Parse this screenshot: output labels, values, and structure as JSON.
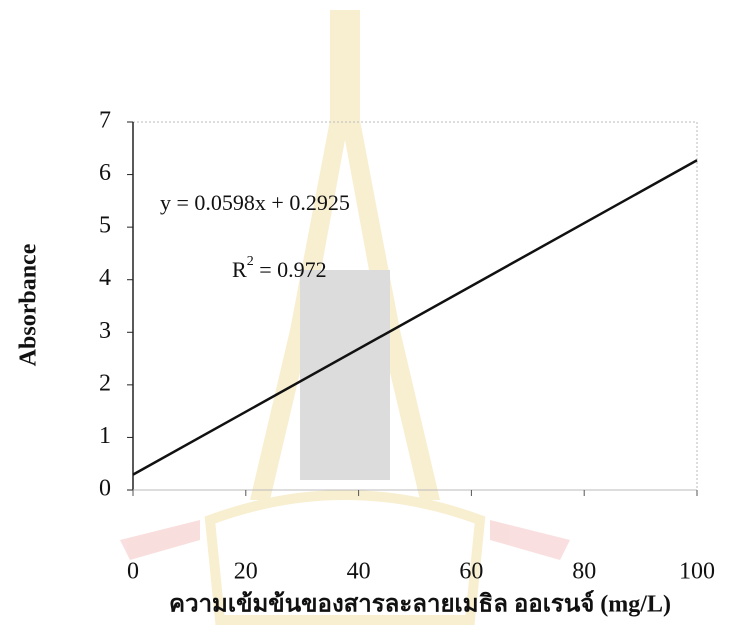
{
  "chart_data": {
    "type": "line",
    "x_label": "ความเข้มข้นของสารละลายเมธิล ออเรนจ์ (mg/L)",
    "y_label": "Absorbance",
    "x": [
      0,
      100
    ],
    "series": [
      {
        "name": "Absorbance",
        "color": "#111111",
        "values": [
          0.2925,
          6.2725
        ]
      }
    ],
    "xlim": [
      0,
      100
    ],
    "xticks": [
      0,
      20,
      40,
      60,
      80,
      100
    ],
    "ylim": [
      0,
      7
    ],
    "yticks": [
      0,
      1,
      2,
      3,
      4,
      5,
      6,
      7
    ],
    "equation": "y = 0.0598x + 0.2925",
    "r_squared": {
      "base": "R",
      "sup": "2",
      "rest": " = 0.972"
    },
    "grid": false
  }
}
